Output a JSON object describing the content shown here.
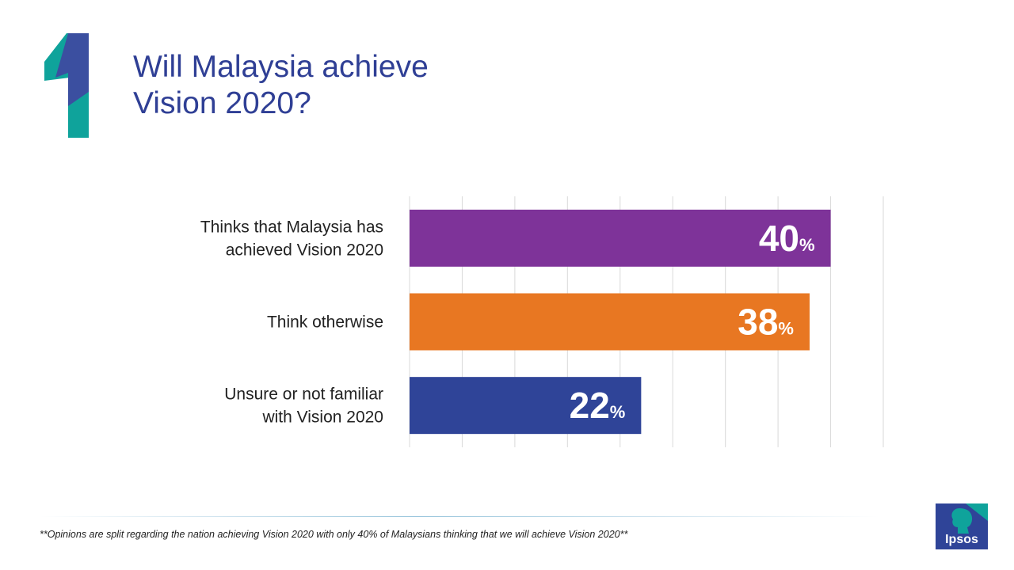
{
  "header": {
    "number": "1",
    "title_line1": "Will Malaysia achieve",
    "title_line2": "Vision 2020?"
  },
  "colors": {
    "title": "#2f3f95",
    "bar_purple": "#7e3399",
    "bar_orange": "#e87722",
    "bar_blue": "#2f4498",
    "grid": "#d9d9d9",
    "accent_teal": "#0fa39b"
  },
  "chart_data": {
    "type": "bar",
    "orientation": "horizontal",
    "categories": [
      [
        "Thinks that Malaysia has",
        "achieved Vision 2020"
      ],
      [
        "Think otherwise"
      ],
      [
        "Unsure or not familiar",
        "with Vision 2020"
      ]
    ],
    "values": [
      40,
      38,
      22
    ],
    "value_suffix": "%",
    "bar_colors": [
      "#7e3399",
      "#e87722",
      "#2f4498"
    ],
    "xlim": [
      0,
      45
    ],
    "grid": true,
    "legend": "none"
  },
  "footer": {
    "note": "**Opinions are split regarding the nation achieving Vision 2020 with only 40% of Malaysians thinking that we will achieve Vision 2020**",
    "logo_text": "Ipsos"
  }
}
